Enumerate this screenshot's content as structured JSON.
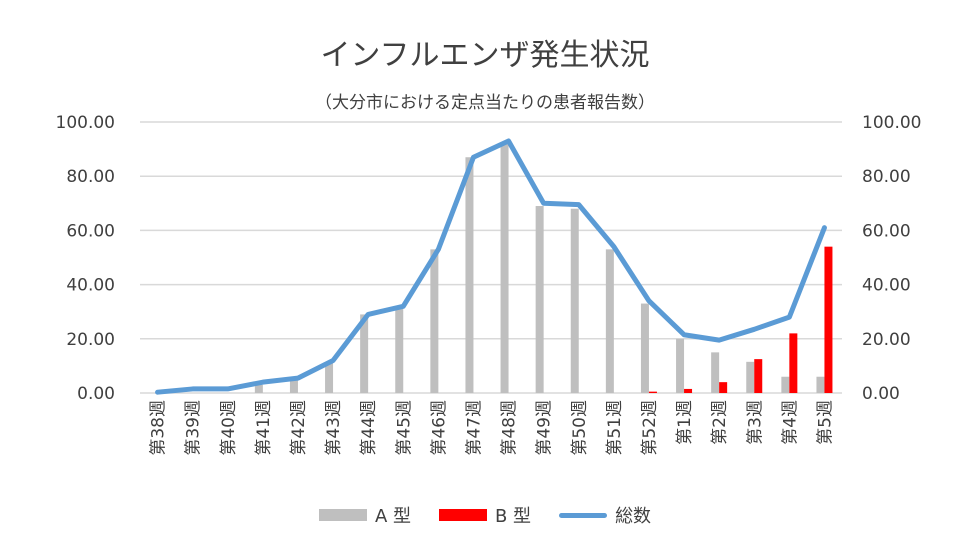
{
  "chart_data": {
    "type": "bar+line",
    "title": "インフルエンザ発生状況",
    "subtitle": "（大分市における定点当たりの患者報告数）",
    "categories": [
      "第38週",
      "第39週",
      "第40週",
      "第41週",
      "第42週",
      "第43週",
      "第44週",
      "第45週",
      "第46週",
      "第47週",
      "第48週",
      "第49週",
      "第50週",
      "第51週",
      "第52週",
      "第1週",
      "第2週",
      "第3週",
      "第4週",
      "第5週"
    ],
    "series": [
      {
        "name": "A 型",
        "type": "bar",
        "color": "#bfbfbf",
        "values": [
          0,
          0,
          0,
          3,
          5,
          11,
          29,
          31,
          53,
          87,
          92,
          69,
          68,
          53,
          33,
          20,
          15,
          11.5,
          6,
          6
        ]
      },
      {
        "name": "B 型",
        "type": "bar",
        "color": "#ff0000",
        "values": [
          0,
          0,
          0,
          0,
          0,
          0,
          0,
          0,
          0,
          0,
          0,
          0,
          0,
          0,
          0.5,
          1.5,
          4,
          12.5,
          22,
          54
        ]
      },
      {
        "name": "総数",
        "type": "line",
        "color": "#5b9bd5",
        "values": [
          0.3,
          1.5,
          1.5,
          4,
          5.5,
          12,
          29,
          32,
          53,
          87,
          93,
          70,
          69.5,
          54,
          34,
          21.5,
          19.5,
          23.5,
          28,
          61
        ]
      }
    ],
    "ylim": [
      0,
      100
    ],
    "yticks": [
      "0.00",
      "20.00",
      "40.00",
      "60.00",
      "80.00",
      "100.00"
    ],
    "grid": true,
    "legend": "bottom"
  }
}
